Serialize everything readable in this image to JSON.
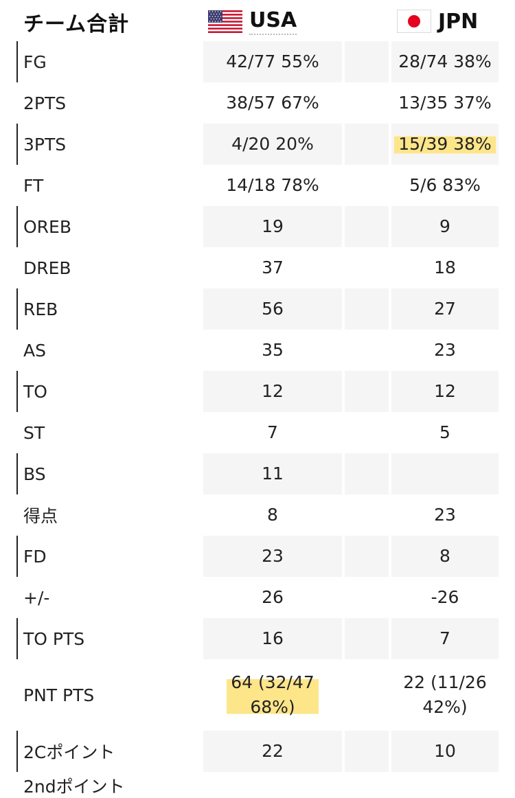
{
  "header": {
    "title": "チーム合計",
    "teams": [
      {
        "name": "USA",
        "flag_icon": "us-flag-icon"
      },
      {
        "name": "JPN",
        "flag_icon": "jp-flag-icon"
      }
    ]
  },
  "colors": {
    "row_shade": "#f5f5f5",
    "highlight": "#fde58a",
    "accent_bar": "#222222",
    "jp_red": "#e6001e"
  },
  "stats": [
    {
      "label": "FG",
      "usa": "42/77 55%",
      "jpn": "28/74 38%",
      "shaded": true
    },
    {
      "label": "2PTS",
      "usa": "38/57 67%",
      "jpn": "13/35 37%",
      "shaded": false
    },
    {
      "label": "3PTS",
      "usa": "4/20 20%",
      "jpn": "15/39 38%",
      "shaded": true,
      "highlight_jpn": true
    },
    {
      "label": "FT",
      "usa": "14/18 78%",
      "jpn": "5/6 83%",
      "shaded": false
    },
    {
      "label": "OREB",
      "usa": "19",
      "jpn": "9",
      "shaded": true
    },
    {
      "label": "DREB",
      "usa": "37",
      "jpn": "18",
      "shaded": false
    },
    {
      "label": "REB",
      "usa": "56",
      "jpn": "27",
      "shaded": true
    },
    {
      "label": "AS",
      "usa": "35",
      "jpn": "23",
      "shaded": false
    },
    {
      "label": "TO",
      "usa": "12",
      "jpn": "12",
      "shaded": true
    },
    {
      "label": "ST",
      "usa": "7",
      "jpn": "5",
      "shaded": false
    },
    {
      "label": "BS",
      "usa": "11",
      "jpn": "",
      "shaded": true
    },
    {
      "label": "得点",
      "usa": "8",
      "jpn": "23",
      "shaded": false
    },
    {
      "label": "FD",
      "usa": "23",
      "jpn": "8",
      "shaded": true
    },
    {
      "label": "+/-",
      "usa": "26",
      "jpn": "-26",
      "shaded": false
    },
    {
      "label": "TO PTS",
      "usa": "16",
      "jpn": "7",
      "shaded": true
    },
    {
      "label": "PNT PTS",
      "usa": "64 (32/47 68%)",
      "usa_lines": [
        "64 (32/47",
        "68%)"
      ],
      "jpn": "22 (11/26 42%)",
      "jpn_lines": [
        "22 (11/26",
        "42%)"
      ],
      "shaded": false,
      "tall": true,
      "highlight_usa": true
    },
    {
      "label": "2Cポイント",
      "usa": "22",
      "jpn": "10",
      "shaded": true
    }
  ],
  "cut_row_label": "2ndポイント"
}
